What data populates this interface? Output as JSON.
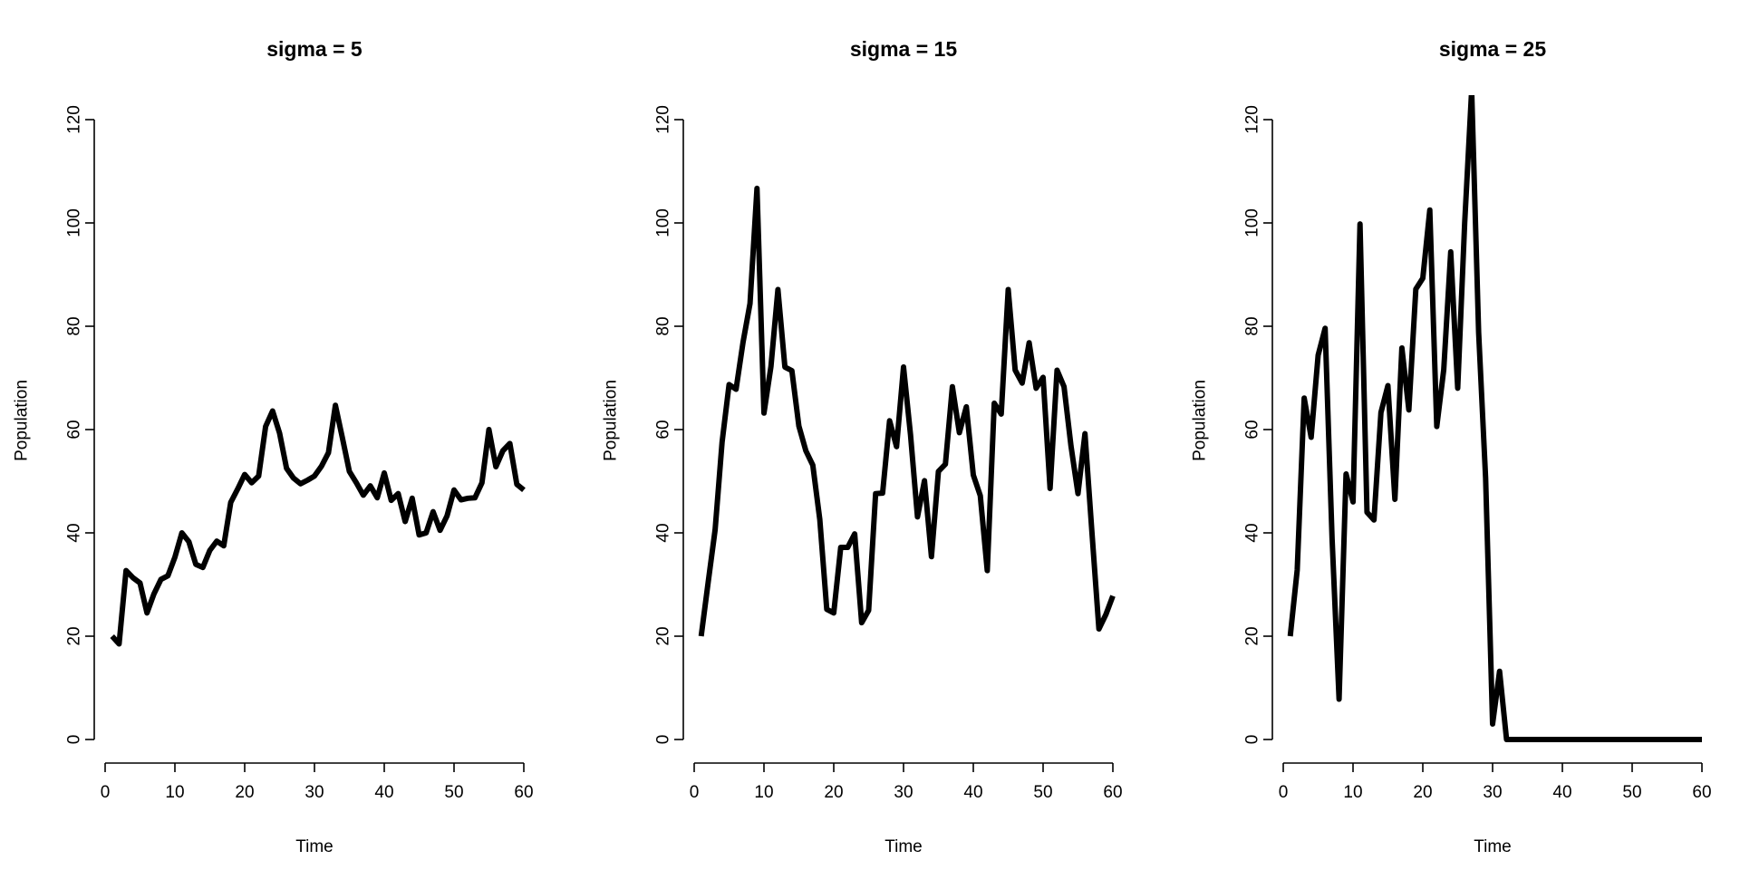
{
  "chart_data": [
    {
      "type": "line",
      "title": "sigma = 5",
      "xlabel": "Time",
      "ylabel": "Population",
      "xlim": [
        0,
        60
      ],
      "ylim": [
        0,
        120
      ],
      "x_ticks": [
        0,
        10,
        20,
        30,
        40,
        50,
        60
      ],
      "y_ticks": [
        0,
        20,
        40,
        60,
        80,
        100,
        120
      ],
      "grid": false,
      "series": [
        {
          "color": "#000000",
          "x": [
            1,
            2,
            3,
            4,
            5,
            6,
            7,
            8,
            9,
            10,
            11,
            12,
            13,
            14,
            15,
            16,
            17,
            18,
            19,
            20,
            21,
            22,
            23,
            24,
            25,
            26,
            27,
            28,
            29,
            30,
            31,
            32,
            33,
            34,
            35,
            36,
            37,
            38,
            39,
            40,
            41,
            42,
            43,
            44,
            45,
            46,
            47,
            48,
            49,
            50,
            51,
            52,
            53,
            54,
            55,
            56,
            57,
            58,
            59,
            60
          ],
          "y": [
            20,
            18.5,
            32.7,
            31.3,
            30.3,
            24.5,
            28.2,
            31,
            31.7,
            35.3,
            40,
            38.3,
            33.9,
            33.3,
            36.6,
            38.4,
            37.5,
            45.9,
            48.5,
            51.3,
            49.7,
            51,
            60.6,
            63.6,
            59.3,
            52.5,
            50.6,
            49.5,
            50.2,
            51,
            52.9,
            55.5,
            64.7,
            58.4,
            51.9,
            49.7,
            47.3,
            49.1,
            46.8,
            51.6,
            46.3,
            47.6,
            42.2,
            46.7,
            39.6,
            40,
            44.1,
            40.5,
            43.3,
            48.3,
            46.4,
            46.7,
            46.8,
            49.7,
            60,
            52.8,
            55.9,
            57.3,
            49.4,
            48.3
          ]
        }
      ]
    },
    {
      "type": "line",
      "title": "sigma = 15",
      "xlabel": "Time",
      "ylabel": "Population",
      "xlim": [
        0,
        60
      ],
      "ylim": [
        0,
        120
      ],
      "x_ticks": [
        0,
        10,
        20,
        30,
        40,
        50,
        60
      ],
      "y_ticks": [
        0,
        20,
        40,
        60,
        80,
        100,
        120
      ],
      "grid": false,
      "series": [
        {
          "color": "#000000",
          "x": [
            1,
            2,
            3,
            4,
            5,
            6,
            7,
            8,
            9,
            10,
            11,
            12,
            13,
            14,
            15,
            16,
            17,
            18,
            19,
            20,
            21,
            22,
            23,
            24,
            25,
            26,
            27,
            28,
            29,
            30,
            31,
            32,
            33,
            34,
            35,
            36,
            37,
            38,
            39,
            40,
            41,
            42,
            43,
            44,
            45,
            46,
            47,
            48,
            49,
            50,
            51,
            52,
            53,
            54,
            55,
            56,
            57,
            58,
            59,
            60
          ],
          "y": [
            20,
            30.4,
            40.6,
            57.6,
            68.7,
            67.8,
            76.9,
            84.4,
            106.7,
            63.2,
            72.2,
            87.1,
            72.1,
            71.4,
            60.7,
            55.9,
            53.1,
            42.6,
            25.2,
            24.5,
            37.2,
            37.2,
            39.8,
            22.6,
            25,
            47.6,
            47.7,
            61.7,
            56.7,
            72.1,
            59,
            43.1,
            50.1,
            35.4,
            51.9,
            53.3,
            68.3,
            59.4,
            64.4,
            51.2,
            47.2,
            32.7,
            65.1,
            63,
            87.1,
            71.5,
            69,
            76.8,
            68,
            70.1,
            48.6,
            71.5,
            68.3,
            56.8,
            47.6,
            59.2,
            40.1,
            21.4,
            24.2,
            27.8
          ]
        }
      ]
    },
    {
      "type": "line",
      "title": "sigma = 25",
      "xlabel": "Time",
      "ylabel": "Population",
      "xlim": [
        0,
        60
      ],
      "ylim": [
        0,
        120
      ],
      "x_ticks": [
        0,
        10,
        20,
        30,
        40,
        50,
        60
      ],
      "y_ticks": [
        0,
        20,
        40,
        60,
        80,
        100,
        120
      ],
      "grid": false,
      "series": [
        {
          "color": "#000000",
          "x": [
            1,
            2,
            3,
            4,
            5,
            6,
            7,
            8,
            9,
            10,
            11,
            12,
            13,
            14,
            15,
            16,
            17,
            18,
            19,
            20,
            21,
            22,
            23,
            24,
            25,
            26,
            27,
            28,
            29,
            30,
            31,
            32,
            33,
            34,
            35,
            36,
            37,
            38,
            39,
            40,
            41,
            42,
            43,
            44,
            45,
            46,
            47,
            48,
            49,
            50,
            51,
            52,
            53,
            54,
            55,
            56,
            57,
            58,
            59,
            60
          ],
          "y": [
            20,
            32.8,
            66.1,
            58.5,
            74.4,
            79.6,
            38.8,
            7.8,
            51.4,
            46,
            99.8,
            44,
            42.5,
            63.3,
            68.5,
            46.5,
            75.8,
            63.8,
            87.2,
            89.3,
            102.5,
            60.6,
            71.6,
            94.4,
            68,
            100,
            125.7,
            78.8,
            50.6,
            3,
            13.2,
            0,
            0,
            0,
            0,
            0,
            0,
            0,
            0,
            0,
            0,
            0,
            0,
            0,
            0,
            0,
            0,
            0,
            0,
            0,
            0,
            0,
            0,
            0,
            0,
            0,
            0,
            0,
            0,
            0
          ]
        }
      ]
    }
  ]
}
